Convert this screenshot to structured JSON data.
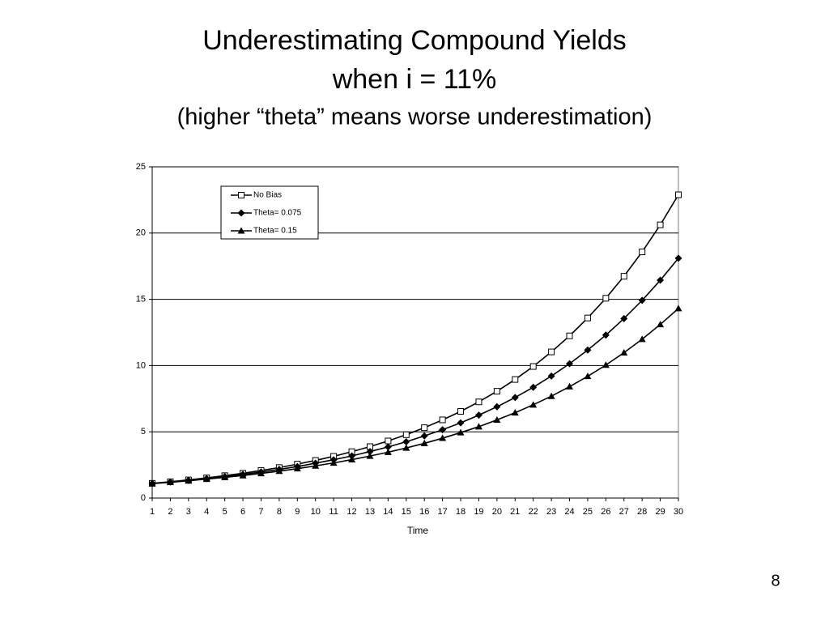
{
  "slide": {
    "title": [
      "Underestimating Compound Yields",
      "when i = 11%",
      "(higher “theta” means worse underestimation)"
    ],
    "page_number": 8
  },
  "chart_data": {
    "type": "line",
    "x": [
      1,
      2,
      3,
      4,
      5,
      6,
      7,
      8,
      9,
      10,
      11,
      12,
      13,
      14,
      15,
      16,
      17,
      18,
      19,
      20,
      21,
      22,
      23,
      24,
      25,
      26,
      27,
      28,
      29,
      30
    ],
    "xlim": [
      1,
      30
    ],
    "xticks": [
      1,
      2,
      3,
      4,
      5,
      6,
      7,
      8,
      9,
      10,
      11,
      12,
      13,
      14,
      15,
      16,
      17,
      18,
      19,
      20,
      21,
      22,
      23,
      24,
      25,
      26,
      27,
      28,
      29,
      30
    ],
    "ylim": [
      0,
      25
    ],
    "yticks": [
      0,
      5,
      10,
      15,
      20,
      25
    ],
    "grid": true,
    "x_label": "Time",
    "legend": "top-left",
    "series": [
      {
        "name": "No Bias",
        "color": "#000000",
        "marker": "square-open",
        "values": [
          1.11,
          1.23,
          1.37,
          1.52,
          1.69,
          1.87,
          2.08,
          2.3,
          2.56,
          2.84,
          3.15,
          3.5,
          3.88,
          4.31,
          4.78,
          5.31,
          5.9,
          6.54,
          7.26,
          8.06,
          8.95,
          9.93,
          11.03,
          12.24,
          13.59,
          15.08,
          16.74,
          18.58,
          20.62,
          22.89
        ]
      },
      {
        "name": "Theta= 0.075",
        "color": "#000000",
        "marker": "diamond",
        "values": [
          1.1,
          1.21,
          1.34,
          1.47,
          1.62,
          1.78,
          1.97,
          2.16,
          2.38,
          2.63,
          2.89,
          3.18,
          3.51,
          3.86,
          4.25,
          4.69,
          5.16,
          5.68,
          6.26,
          6.89,
          7.59,
          8.36,
          9.21,
          10.14,
          11.17,
          12.3,
          13.55,
          14.92,
          16.44,
          18.1
        ]
      },
      {
        "name": "Theta= 0.15",
        "color": "#000000",
        "marker": "triangle",
        "values": [
          1.09,
          1.19,
          1.3,
          1.43,
          1.56,
          1.7,
          1.86,
          2.03,
          2.22,
          2.43,
          2.65,
          2.9,
          3.17,
          3.46,
          3.78,
          4.13,
          4.52,
          4.94,
          5.39,
          5.9,
          6.44,
          7.04,
          7.69,
          8.41,
          9.19,
          10.04,
          10.97,
          11.99,
          13.1,
          14.31
        ]
      }
    ]
  }
}
